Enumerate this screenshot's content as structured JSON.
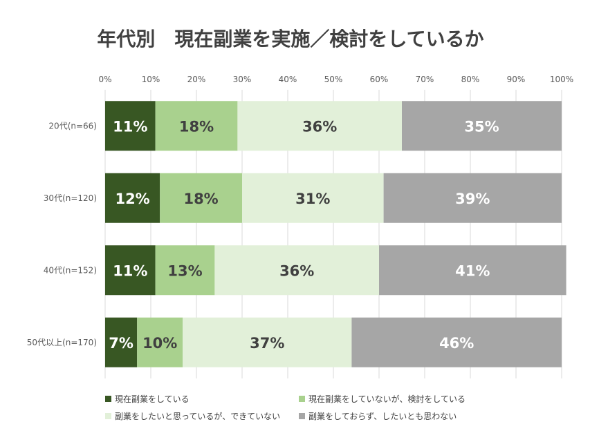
{
  "chart_data": {
    "type": "bar",
    "orientation": "horizontal",
    "stacked": true,
    "title": "年代別　現在副業を実施／検討をしているか",
    "xlim": [
      0,
      100
    ],
    "x_ticks": [
      "0%",
      "10%",
      "20%",
      "30%",
      "40%",
      "50%",
      "60%",
      "70%",
      "80%",
      "90%",
      "100%"
    ],
    "grid": true,
    "legend_position": "bottom",
    "categories": [
      "20代(n=66)",
      "30代(n=120)",
      "40代(n=152)",
      "50代以上(n=170)"
    ],
    "series": [
      {
        "name": "現在副業をしている",
        "values": [
          11,
          12,
          11,
          7
        ],
        "color": "#385723",
        "label_color": "#ffffff"
      },
      {
        "name": "現在副業をしていないが、検討をしている",
        "values": [
          18,
          18,
          13,
          10
        ],
        "color": "#a9d18e",
        "label_color": "#404040"
      },
      {
        "name": "副業をしたいと思っているが、できていない",
        "values": [
          36,
          31,
          36,
          37
        ],
        "color": "#e2f0d9",
        "label_color": "#404040"
      },
      {
        "name": "副業をしておらず、したいとも思わない",
        "values": [
          35,
          39,
          41,
          46
        ],
        "color": "#a6a6a6",
        "label_color": "#ffffff"
      }
    ],
    "data_labels": [
      [
        "11%",
        "18%",
        "36%",
        "35%"
      ],
      [
        "12%",
        "18%",
        "31%",
        "39%"
      ],
      [
        "11%",
        "13%",
        "36%",
        "41%"
      ],
      [
        "7%",
        "10%",
        "37%",
        "46%"
      ]
    ]
  }
}
